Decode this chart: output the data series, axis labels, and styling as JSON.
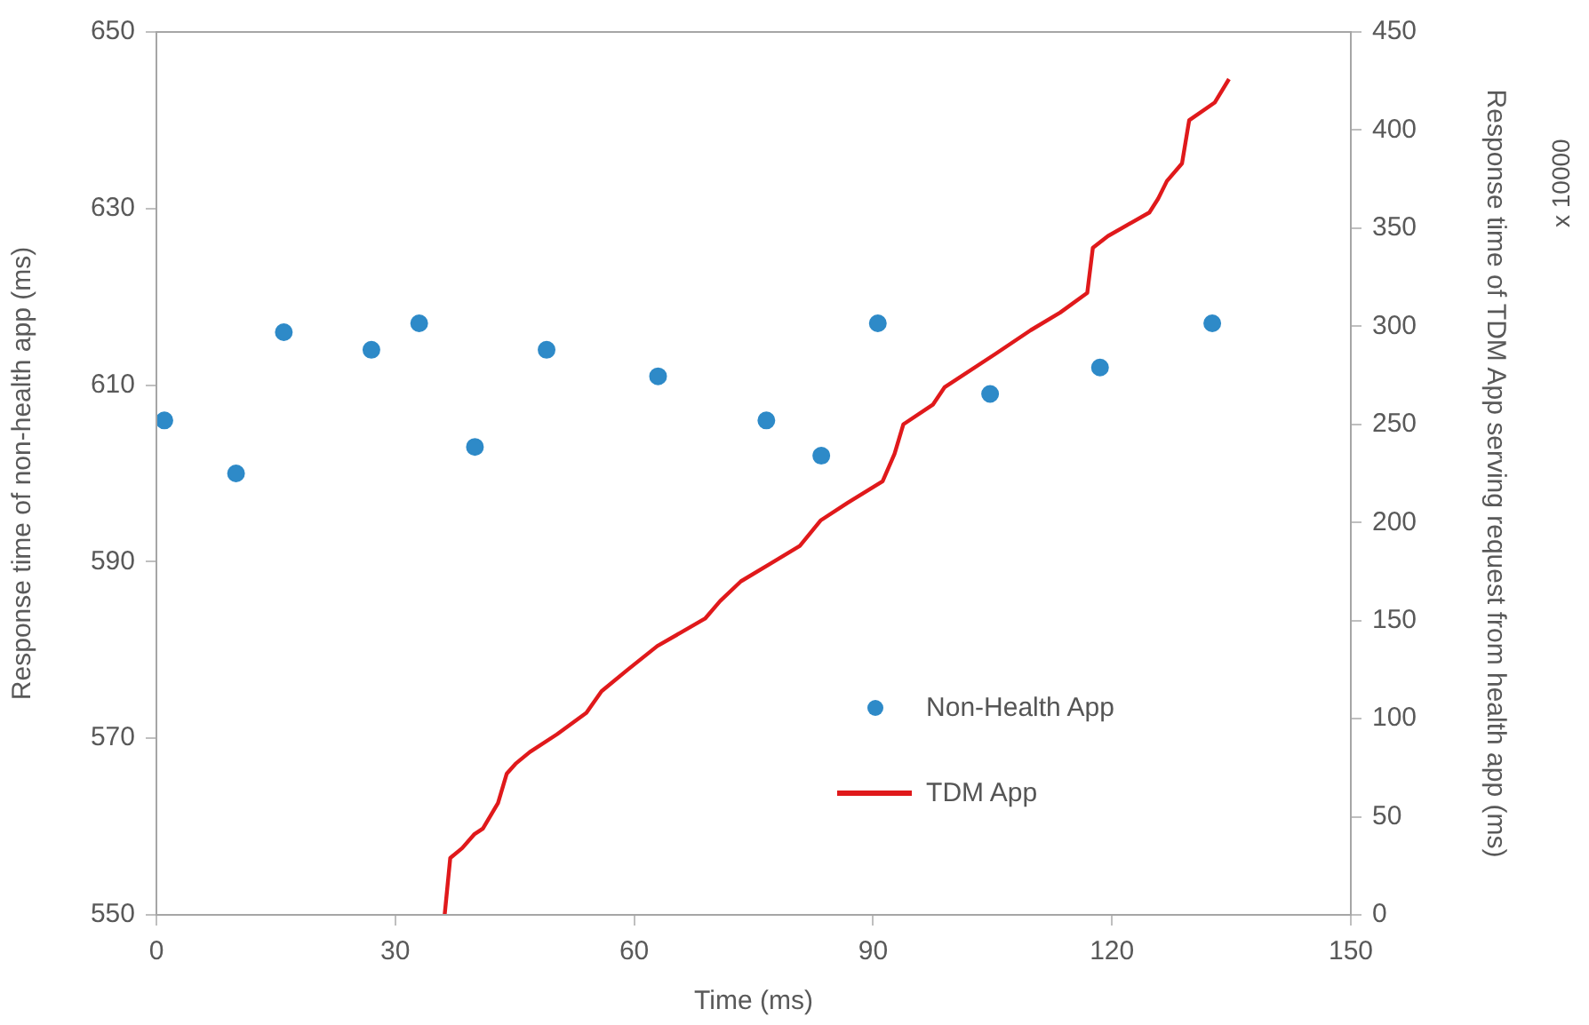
{
  "chart_data": {
    "type": "scatter",
    "xlabel": "Time (ms)",
    "ylabel": "Response time of non-health app (ms)",
    "y2label": "Response time of TDM App serving request from health app (ms)",
    "annotations": [
      "x 10000"
    ],
    "xlim": [
      0,
      150
    ],
    "xticks": [
      0,
      30,
      60,
      90,
      120,
      150
    ],
    "ylim": [
      550,
      650
    ],
    "yticks": [
      550,
      570,
      590,
      610,
      630,
      650
    ],
    "y2lim": [
      0,
      450
    ],
    "y2ticks": [
      0,
      50,
      100,
      150,
      200,
      250,
      300,
      350,
      400,
      450
    ],
    "grid": false,
    "legend": "bottom right",
    "marker": "circle",
    "series": [
      {
        "name": "Non-Health App",
        "color": "#2e8ac8",
        "x": [
          1,
          10,
          16,
          27,
          33,
          40,
          49,
          63,
          76.6,
          83.5,
          90.6,
          104.7,
          118.5,
          132.6
        ],
        "values": [
          606,
          600,
          616,
          614,
          617,
          603,
          614,
          611,
          606,
          602,
          617,
          609,
          612,
          617
        ]
      },
      {
        "name": "TDM App",
        "type": "line",
        "axis": "y2",
        "color": "#e0191b",
        "marker": "none",
        "line_style": "solid",
        "x": [
          36.2,
          36.9,
          38.4,
          39.9,
          41.0,
          42.9,
          44.0,
          45.1,
          46.9,
          50.3,
          54.0,
          55.9,
          59.2,
          62.9,
          68.9,
          70.8,
          73.4,
          77.1,
          80.8,
          83.4,
          86.8,
          91.2,
          92.7,
          93.8,
          97.5,
          99.0,
          105.4,
          109.8,
          113.5,
          116.9,
          117.6,
          119.5,
          124.7,
          125.8,
          126.9,
          128.8,
          129.7,
          132.9,
          134.7
        ],
        "values": [
          0,
          29,
          34,
          41,
          44,
          57,
          72,
          77,
          83,
          92,
          103,
          114,
          125,
          137,
          151,
          160,
          170,
          179,
          188,
          201,
          210,
          221,
          235,
          250,
          260,
          269,
          286,
          298,
          307,
          317,
          340,
          346,
          358,
          365,
          374,
          383,
          405,
          414,
          426
        ]
      }
    ]
  }
}
